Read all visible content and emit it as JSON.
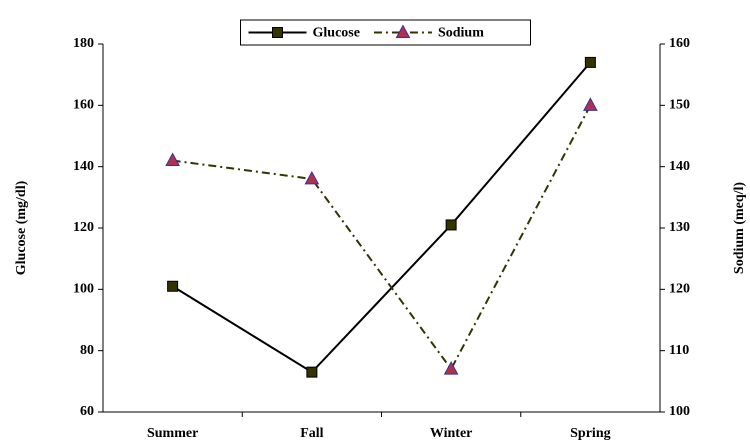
{
  "chart_data": {
    "type": "line",
    "categories": [
      "Summer",
      "Fall",
      "Winter",
      "Spring"
    ],
    "series": [
      {
        "name": "Glucose",
        "color": "#000000",
        "marker_color": "#333300",
        "marker": "square",
        "dash": "solid",
        "values": [
          101,
          73,
          121,
          174
        ]
      },
      {
        "name": "Sodium",
        "color": "#333300",
        "marker_color": "#b03050",
        "marker": "triangle",
        "dash": "dashdot",
        "axis": "y2",
        "values": [
          141,
          138,
          107,
          150
        ]
      }
    ],
    "ylabel": "Glucose (mg/dl)",
    "y2label": "Sodium (meq/l)",
    "ylim": [
      60,
      180
    ],
    "yticks": [
      60,
      80,
      100,
      120,
      140,
      160,
      180
    ],
    "y2lim": [
      100,
      160
    ],
    "y2ticks": [
      100,
      110,
      120,
      130,
      140,
      150,
      160
    ],
    "legend": "upper center",
    "grid": false
  }
}
